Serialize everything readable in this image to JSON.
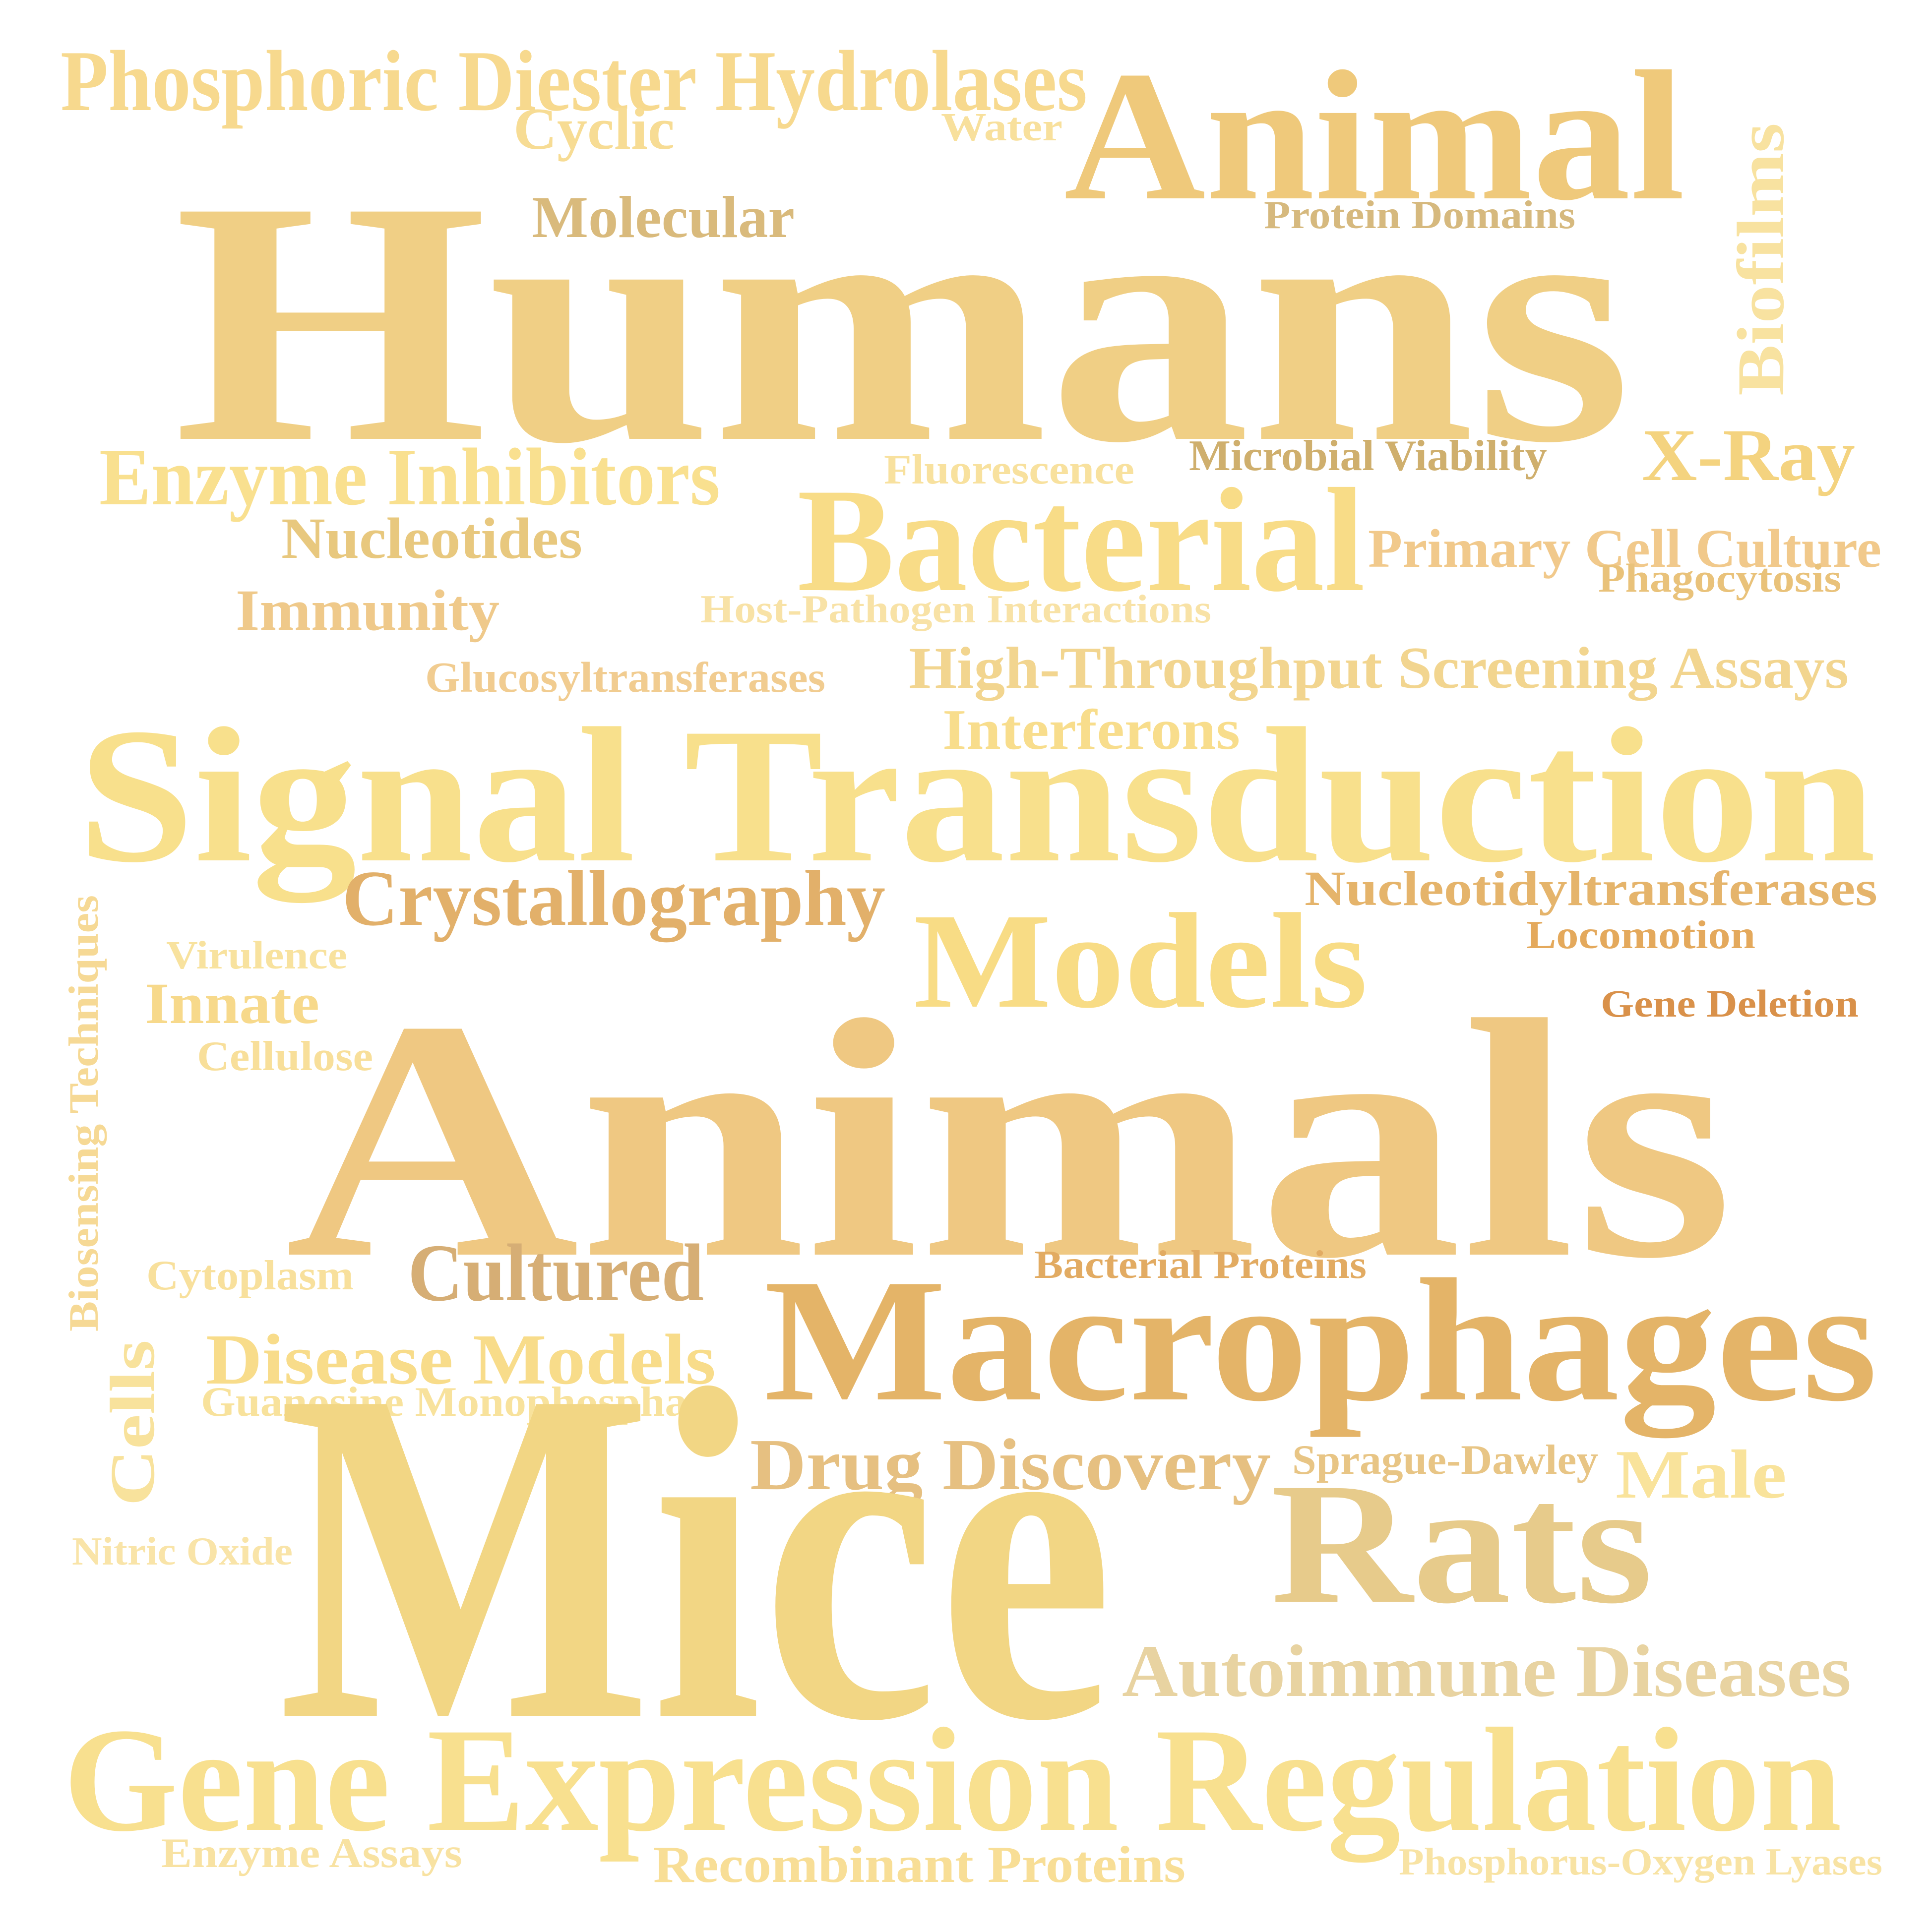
{
  "words": [
    {
      "text": "Phosphoric Diester Hydrolases",
      "color": "#F7D98E"
    },
    {
      "text": "Cyclic",
      "color": "#F7DC94"
    },
    {
      "text": "Water",
      "color": "#F8E09C"
    },
    {
      "text": "Animal",
      "color": "#EFC97B"
    },
    {
      "text": "Humans",
      "color": "#F0CF85"
    },
    {
      "text": "Molecular",
      "color": "#D9BA7C"
    },
    {
      "text": "Protein Domains",
      "color": "#D6B97E"
    },
    {
      "text": "Biofilms",
      "color": "#F8E2A0"
    },
    {
      "text": "Enzyme Inhibitors",
      "color": "#F9E08F"
    },
    {
      "text": "Fluorescence",
      "color": "#F8E19E"
    },
    {
      "text": "Microbial Viability",
      "color": "#CFAF6D"
    },
    {
      "text": "X-Ray",
      "color": "#F4D37F"
    },
    {
      "text": "Nucleotides",
      "color": "#E8C87E"
    },
    {
      "text": "Bacterial",
      "color": "#F8DC87"
    },
    {
      "text": "Primary Cell Culture",
      "color": "#F1C98B"
    },
    {
      "text": "Phagocytosis",
      "color": "#E9C27A"
    },
    {
      "text": "Immunity",
      "color": "#EFC98A"
    },
    {
      "text": "Host-Pathogen Interactions",
      "color": "#F8E2A6"
    },
    {
      "text": "Glucosyltransferases",
      "color": "#F1CC90"
    },
    {
      "text": "High-Throughput Screening Assays",
      "color": "#F2D58F"
    },
    {
      "text": "Interferons",
      "color": "#F8DD8C"
    },
    {
      "text": "Signal Transduction",
      "color": "#F8E08C"
    },
    {
      "text": "Crystallography",
      "color": "#E2B06A"
    },
    {
      "text": "Nucleotidyltransferases",
      "color": "#E5B46B"
    },
    {
      "text": "Models",
      "color": "#F8DC85"
    },
    {
      "text": "Locomotion",
      "color": "#E4A95C"
    },
    {
      "text": "Virulence",
      "color": "#F8E29E"
    },
    {
      "text": "Innate",
      "color": "#F7D98B"
    },
    {
      "text": "Gene Deletion",
      "color": "#D9914A"
    },
    {
      "text": "Cellulose",
      "color": "#F8DF9A"
    },
    {
      "text": "Biosensing Techniques",
      "color": "#F6D995"
    },
    {
      "text": "Animals",
      "color": "#EFC882"
    },
    {
      "text": "Cytoplasm",
      "color": "#F8E09C"
    },
    {
      "text": "Cultured",
      "color": "#D6AE75"
    },
    {
      "text": "Bacterial Proteins",
      "color": "#E2AB62"
    },
    {
      "text": "Macrophages",
      "color": "#E4B468"
    },
    {
      "text": "Disease Models",
      "color": "#F8DC8A"
    },
    {
      "text": "Guanosine Monophosphate",
      "color": "#F8E29C"
    },
    {
      "text": "Cells",
      "color": "#F8E29C"
    },
    {
      "text": "Drug Discovery",
      "color": "#E6C081"
    },
    {
      "text": "Sprague-Dawley",
      "color": "#E8C585"
    },
    {
      "text": "Male",
      "color": "#F9E39B"
    },
    {
      "text": "Mice",
      "color": "#F2D684"
    },
    {
      "text": "Nitric Oxide",
      "color": "#F9E4A8"
    },
    {
      "text": "Rats",
      "color": "#E7CB8B"
    },
    {
      "text": "Autoimmune Diseases",
      "color": "#E8D3A1"
    },
    {
      "text": "Gene Expression Regulation",
      "color": "#F8E08F"
    },
    {
      "text": "Enzyme Assays",
      "color": "#F8E2A2"
    },
    {
      "text": "Recombinant Proteins",
      "color": "#F8DE96"
    },
    {
      "text": "Phosphorus-Oxygen Lyases",
      "color": "#F8E3A4"
    }
  ]
}
